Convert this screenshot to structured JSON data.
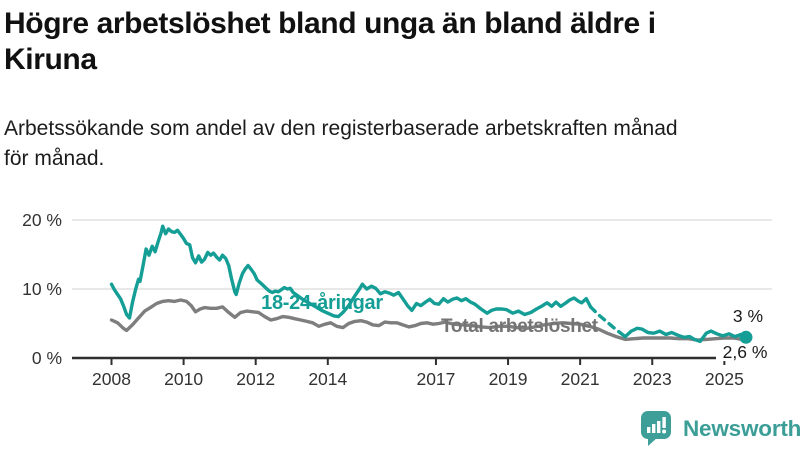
{
  "header": {
    "title_lines": [
      "Högre arbetslöshet bland unga än bland äldre i",
      "Kiruna"
    ],
    "subtitle_lines": [
      "Arbetssökande som andel av den registerbaserade arbetskraften månad",
      "för månad."
    ]
  },
  "chart_data": {
    "type": "line",
    "x_unit": "year (decimal, monthly data)",
    "xlim": [
      2008.0,
      2025.6
    ],
    "ylim": [
      0,
      20
    ],
    "grid": "horizontal",
    "yticks": [
      {
        "value": 0,
        "label": "0 %"
      },
      {
        "value": 10,
        "label": "10 %"
      },
      {
        "value": 20,
        "label": "20 %"
      }
    ],
    "xticks": [
      {
        "value": 2008,
        "label": "2008"
      },
      {
        "value": 2010,
        "label": "2010"
      },
      {
        "value": 2012,
        "label": "2012"
      },
      {
        "value": 2014,
        "label": "2014"
      },
      {
        "value": 2017,
        "label": "2017"
      },
      {
        "value": 2019,
        "label": "2019"
      },
      {
        "value": 2021,
        "label": "2021"
      },
      {
        "value": 2023,
        "label": "2023"
      },
      {
        "value": 2025,
        "label": "2025"
      }
    ],
    "series": [
      {
        "name": "total-arbetsloshet",
        "label_text": "Total arbetslöshet",
        "color": "#7e7e7e",
        "label_color": "#747474",
        "end_label": "2,6 %",
        "end_value": 2.6,
        "points": [
          [
            2008.0,
            5.5
          ],
          [
            2008.17,
            5.1
          ],
          [
            2008.33,
            4.3
          ],
          [
            2008.42,
            4.0
          ],
          [
            2008.58,
            4.8
          ],
          [
            2008.75,
            5.8
          ],
          [
            2008.92,
            6.8
          ],
          [
            2009.08,
            7.3
          ],
          [
            2009.25,
            7.9
          ],
          [
            2009.42,
            8.2
          ],
          [
            2009.58,
            8.3
          ],
          [
            2009.75,
            8.2
          ],
          [
            2009.92,
            8.4
          ],
          [
            2010.08,
            8.2
          ],
          [
            2010.21,
            7.6
          ],
          [
            2010.33,
            6.7
          ],
          [
            2010.46,
            7.1
          ],
          [
            2010.58,
            7.3
          ],
          [
            2010.75,
            7.2
          ],
          [
            2010.92,
            7.2
          ],
          [
            2011.08,
            7.4
          ],
          [
            2011.25,
            6.6
          ],
          [
            2011.42,
            5.9
          ],
          [
            2011.58,
            6.6
          ],
          [
            2011.75,
            6.8
          ],
          [
            2011.92,
            6.7
          ],
          [
            2012.08,
            6.6
          ],
          [
            2012.25,
            6.0
          ],
          [
            2012.42,
            5.5
          ],
          [
            2012.58,
            5.7
          ],
          [
            2012.75,
            6.0
          ],
          [
            2012.92,
            5.9
          ],
          [
            2013.08,
            5.7
          ],
          [
            2013.25,
            5.5
          ],
          [
            2013.42,
            5.3
          ],
          [
            2013.58,
            5.1
          ],
          [
            2013.75,
            4.6
          ],
          [
            2013.92,
            4.9
          ],
          [
            2014.08,
            5.1
          ],
          [
            2014.25,
            4.6
          ],
          [
            2014.42,
            4.4
          ],
          [
            2014.58,
            5.0
          ],
          [
            2014.75,
            5.3
          ],
          [
            2014.92,
            5.4
          ],
          [
            2015.08,
            5.2
          ],
          [
            2015.25,
            4.8
          ],
          [
            2015.42,
            4.7
          ],
          [
            2015.58,
            5.2
          ],
          [
            2015.75,
            5.1
          ],
          [
            2015.92,
            5.1
          ],
          [
            2016.08,
            4.8
          ],
          [
            2016.25,
            4.5
          ],
          [
            2016.42,
            4.7
          ],
          [
            2016.58,
            5.0
          ],
          [
            2016.75,
            5.1
          ],
          [
            2016.92,
            4.9
          ],
          [
            2017.08,
            5.0
          ],
          [
            2017.25,
            5.2
          ],
          [
            2017.5,
            4.9
          ],
          [
            2017.75,
            4.8
          ],
          [
            2018.0,
            4.7
          ],
          [
            2018.25,
            4.5
          ],
          [
            2018.5,
            4.4
          ],
          [
            2018.75,
            4.6
          ],
          [
            2019.0,
            4.6
          ],
          [
            2019.25,
            4.4
          ],
          [
            2019.5,
            4.3
          ],
          [
            2019.75,
            4.5
          ],
          [
            2020.0,
            4.8
          ],
          [
            2020.25,
            5.0
          ],
          [
            2020.5,
            5.1
          ],
          [
            2020.75,
            5.0
          ],
          [
            2021.0,
            4.9
          ],
          [
            2021.25,
            4.6
          ],
          [
            2021.5,
            4.2
          ],
          [
            2021.75,
            3.6
          ],
          [
            2022.0,
            3.1
          ],
          [
            2022.25,
            2.7
          ],
          [
            2022.5,
            2.8
          ],
          [
            2022.75,
            2.9
          ],
          [
            2023.0,
            2.9
          ],
          [
            2023.25,
            2.9
          ],
          [
            2023.5,
            2.9
          ],
          [
            2023.75,
            2.8
          ],
          [
            2024.0,
            2.8
          ],
          [
            2024.25,
            2.6
          ],
          [
            2024.5,
            2.7
          ],
          [
            2024.75,
            2.8
          ],
          [
            2025.0,
            2.9
          ],
          [
            2025.25,
            2.9
          ],
          [
            2025.6,
            2.6
          ]
        ]
      },
      {
        "name": "18-24-aringar",
        "label_text": "18-24-åringar",
        "color": "#149e95",
        "label_color": "#149e95",
        "end_label": "3 %",
        "end_value": 3.0,
        "end_dot": {
          "t": 2025.6,
          "value": 3.0
        },
        "points_solid": [
          [
            2008.0,
            10.7
          ],
          [
            2008.08,
            9.9
          ],
          [
            2008.17,
            9.2
          ],
          [
            2008.25,
            8.6
          ],
          [
            2008.33,
            7.6
          ],
          [
            2008.42,
            6.3
          ],
          [
            2008.5,
            5.8
          ],
          [
            2008.58,
            8.0
          ],
          [
            2008.67,
            10.0
          ],
          [
            2008.75,
            11.4
          ],
          [
            2008.79,
            11.1
          ],
          [
            2008.88,
            13.5
          ],
          [
            2008.96,
            15.8
          ],
          [
            2009.04,
            14.9
          ],
          [
            2009.13,
            16.2
          ],
          [
            2009.21,
            15.4
          ],
          [
            2009.29,
            16.8
          ],
          [
            2009.38,
            18.2
          ],
          [
            2009.42,
            19.1
          ],
          [
            2009.5,
            18.0
          ],
          [
            2009.58,
            18.7
          ],
          [
            2009.67,
            18.3
          ],
          [
            2009.75,
            18.2
          ],
          [
            2009.83,
            18.5
          ],
          [
            2009.92,
            17.9
          ],
          [
            2010.0,
            17.3
          ],
          [
            2010.08,
            16.6
          ],
          [
            2010.17,
            16.4
          ],
          [
            2010.25,
            14.5
          ],
          [
            2010.33,
            13.8
          ],
          [
            2010.42,
            14.8
          ],
          [
            2010.5,
            13.9
          ],
          [
            2010.58,
            14.3
          ],
          [
            2010.67,
            15.3
          ],
          [
            2010.75,
            14.9
          ],
          [
            2010.83,
            15.2
          ],
          [
            2010.92,
            14.6
          ],
          [
            2011.0,
            14.2
          ],
          [
            2011.08,
            14.9
          ],
          [
            2011.17,
            14.4
          ],
          [
            2011.25,
            13.4
          ],
          [
            2011.33,
            11.5
          ],
          [
            2011.42,
            9.6
          ],
          [
            2011.46,
            9.2
          ],
          [
            2011.54,
            10.8
          ],
          [
            2011.63,
            12.2
          ],
          [
            2011.71,
            12.9
          ],
          [
            2011.79,
            13.4
          ],
          [
            2011.88,
            12.8
          ],
          [
            2011.96,
            12.2
          ],
          [
            2012.04,
            11.3
          ],
          [
            2012.13,
            10.9
          ],
          [
            2012.21,
            10.5
          ],
          [
            2012.29,
            10.1
          ],
          [
            2012.38,
            9.7
          ],
          [
            2012.46,
            9.5
          ],
          [
            2012.54,
            9.7
          ],
          [
            2012.63,
            9.6
          ],
          [
            2012.71,
            9.9
          ],
          [
            2012.79,
            10.2
          ],
          [
            2012.88,
            10.0
          ],
          [
            2012.96,
            10.1
          ],
          [
            2013.04,
            9.5
          ],
          [
            2013.17,
            9.0
          ],
          [
            2013.33,
            8.4
          ],
          [
            2013.5,
            7.9
          ],
          [
            2013.67,
            7.4
          ],
          [
            2013.83,
            6.9
          ],
          [
            2014.0,
            6.5
          ],
          [
            2014.17,
            6.1
          ],
          [
            2014.29,
            6.0
          ],
          [
            2014.42,
            6.6
          ],
          [
            2014.58,
            7.6
          ],
          [
            2014.75,
            9.0
          ],
          [
            2014.88,
            10.0
          ],
          [
            2014.96,
            10.7
          ],
          [
            2015.08,
            10.0
          ],
          [
            2015.21,
            10.4
          ],
          [
            2015.33,
            10.1
          ],
          [
            2015.46,
            9.3
          ],
          [
            2015.58,
            9.6
          ],
          [
            2015.71,
            9.4
          ],
          [
            2015.83,
            9.1
          ],
          [
            2015.96,
            9.5
          ],
          [
            2016.08,
            8.6
          ],
          [
            2016.21,
            7.6
          ],
          [
            2016.33,
            6.9
          ],
          [
            2016.46,
            7.9
          ],
          [
            2016.58,
            7.6
          ],
          [
            2016.71,
            8.1
          ],
          [
            2016.83,
            8.5
          ],
          [
            2016.96,
            7.9
          ],
          [
            2017.08,
            7.8
          ],
          [
            2017.21,
            8.6
          ],
          [
            2017.33,
            8.1
          ],
          [
            2017.46,
            8.5
          ],
          [
            2017.58,
            8.7
          ],
          [
            2017.71,
            8.3
          ],
          [
            2017.83,
            8.6
          ],
          [
            2017.96,
            8.1
          ],
          [
            2018.08,
            7.8
          ],
          [
            2018.25,
            7.1
          ],
          [
            2018.42,
            6.5
          ],
          [
            2018.54,
            6.9
          ],
          [
            2018.67,
            7.1
          ],
          [
            2018.83,
            7.1
          ],
          [
            2018.96,
            7.0
          ],
          [
            2019.13,
            6.5
          ],
          [
            2019.29,
            6.8
          ],
          [
            2019.46,
            6.3
          ],
          [
            2019.63,
            6.6
          ],
          [
            2019.79,
            7.1
          ],
          [
            2019.96,
            7.6
          ],
          [
            2020.08,
            8.0
          ],
          [
            2020.21,
            7.5
          ],
          [
            2020.33,
            8.1
          ],
          [
            2020.46,
            7.5
          ],
          [
            2020.58,
            7.9
          ],
          [
            2020.71,
            8.4
          ],
          [
            2020.83,
            8.7
          ],
          [
            2020.96,
            8.2
          ],
          [
            2021.04,
            8.0
          ],
          [
            2021.17,
            8.6
          ],
          [
            2021.29,
            7.4
          ]
        ],
        "points_dashed": [
          [
            2021.29,
            7.4
          ],
          [
            2021.5,
            6.3
          ],
          [
            2021.75,
            5.2
          ],
          [
            2022.0,
            4.1
          ],
          [
            2022.25,
            3.1
          ]
        ],
        "points_solid2": [
          [
            2022.25,
            3.1
          ],
          [
            2022.42,
            3.9
          ],
          [
            2022.58,
            4.3
          ],
          [
            2022.71,
            4.2
          ],
          [
            2022.88,
            3.7
          ],
          [
            2023.04,
            3.6
          ],
          [
            2023.21,
            3.9
          ],
          [
            2023.38,
            3.4
          ],
          [
            2023.54,
            3.7
          ],
          [
            2023.71,
            3.3
          ],
          [
            2023.88,
            3.0
          ],
          [
            2024.04,
            3.1
          ],
          [
            2024.17,
            2.7
          ],
          [
            2024.33,
            2.4
          ],
          [
            2024.5,
            3.6
          ],
          [
            2024.63,
            3.9
          ],
          [
            2024.79,
            3.5
          ],
          [
            2024.96,
            3.2
          ],
          [
            2025.13,
            3.5
          ],
          [
            2025.29,
            3.1
          ],
          [
            2025.46,
            3.4
          ],
          [
            2025.6,
            3.0
          ]
        ]
      }
    ],
    "colors": {
      "grid": "#d9d9d9",
      "axis": "#2f2f2f",
      "tick_label": "#333333",
      "value_label": "#1a1a1a"
    }
  },
  "footer": {
    "brand": "Newsworthy",
    "brand_color": "#3b9e97",
    "logo_icon": "bar-chart-speech-bubble-icon"
  }
}
